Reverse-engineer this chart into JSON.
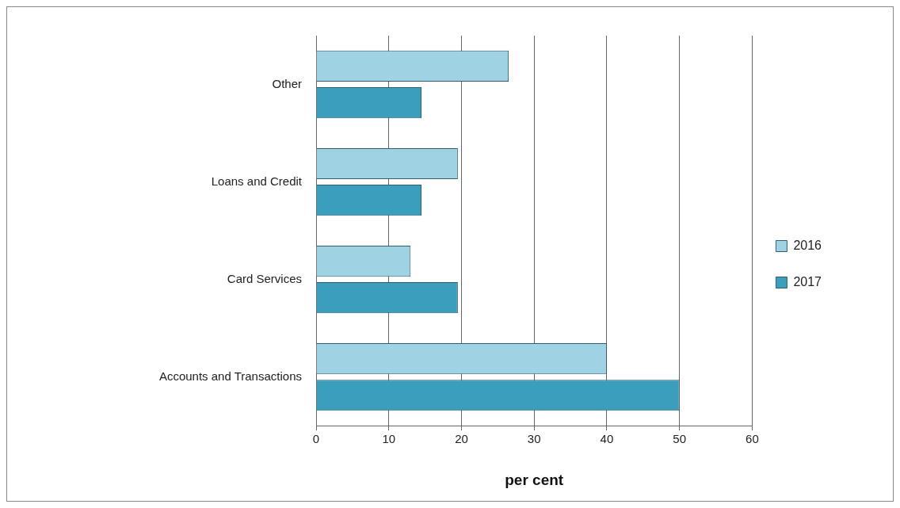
{
  "chart_data": {
    "type": "bar",
    "orientation": "horizontal",
    "xlabel": "per cent",
    "categories": [
      "Other",
      "Loans and Credit",
      "Card Services",
      "Accounts and Transactions"
    ],
    "series": [
      {
        "name": "2016",
        "color": "#9fd3e3",
        "values": [
          26.5,
          19.5,
          13,
          40
        ]
      },
      {
        "name": "2017",
        "color": "#3a9ebc",
        "values": [
          14.5,
          14.5,
          19.5,
          50
        ]
      }
    ],
    "xlim": [
      0,
      60
    ],
    "xticks": [
      0,
      10,
      20,
      30,
      40,
      50,
      60
    ],
    "grid": "x",
    "legend": "right"
  }
}
